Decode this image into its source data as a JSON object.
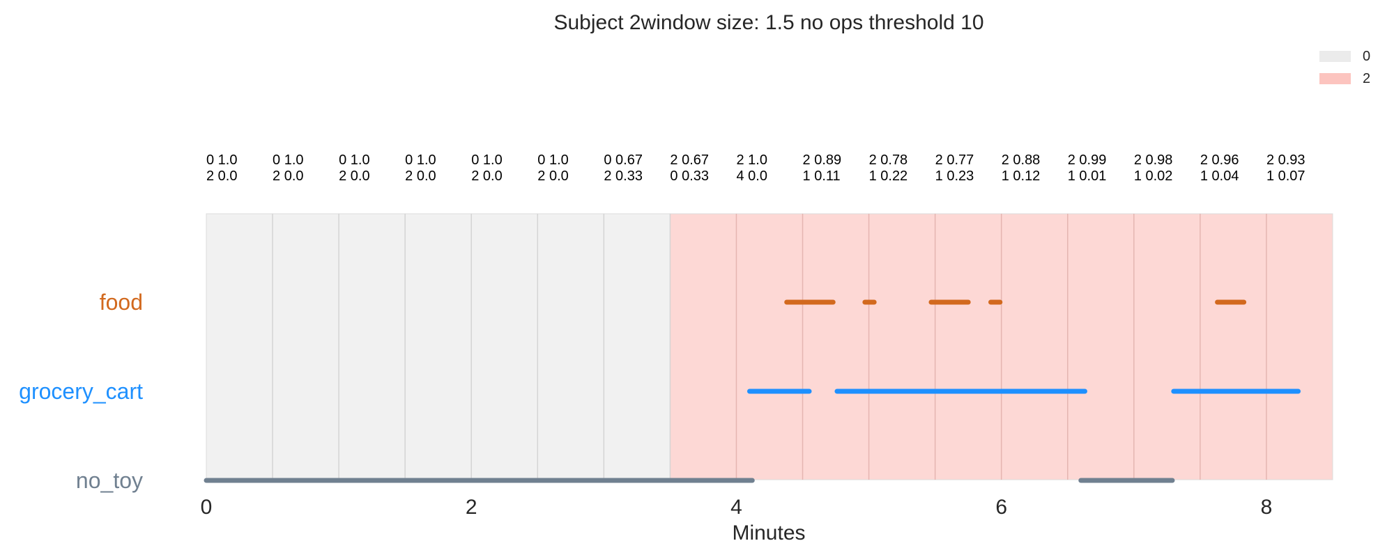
{
  "chart_data": {
    "type": "timeline",
    "title": "Subject 2window size: 1.5 no ops threshold 10",
    "xlabel": "Minutes",
    "xlim": [
      0,
      8.5
    ],
    "xticks": [
      0,
      2,
      4,
      6,
      8
    ],
    "grid": "vertical every 0.5",
    "legend": {
      "placement": "top-right",
      "entries": [
        {
          "label": "0",
          "color": "#ebebeb"
        },
        {
          "label": "2",
          "color": "#fcc4bf"
        }
      ]
    },
    "background_regions": [
      {
        "label": "0",
        "start": 0,
        "end": 3.5,
        "color": "#f1f1f1"
      },
      {
        "label": "2",
        "start": 3.5,
        "end": 8.5,
        "color": "#fdd8d5"
      }
    ],
    "window_annotations": [
      {
        "line1": "0 1.0",
        "line2": "2 0.0"
      },
      {
        "line1": "0 1.0",
        "line2": "2 0.0"
      },
      {
        "line1": "0 1.0",
        "line2": "2 0.0"
      },
      {
        "line1": "0 1.0",
        "line2": "2 0.0"
      },
      {
        "line1": "0 1.0",
        "line2": "2 0.0"
      },
      {
        "line1": "0 1.0",
        "line2": "2 0.0"
      },
      {
        "line1": "0 0.67",
        "line2": "2 0.33"
      },
      {
        "line1": "2 0.67",
        "line2": "0 0.33"
      },
      {
        "line1": "2 1.0",
        "line2": "4 0.0"
      },
      {
        "line1": "2 0.89",
        "line2": "1 0.11"
      },
      {
        "line1": "2 0.78",
        "line2": "1 0.22"
      },
      {
        "line1": "2 0.77",
        "line2": "1 0.23"
      },
      {
        "line1": "2 0.88",
        "line2": "1 0.12"
      },
      {
        "line1": "2 0.99",
        "line2": "1 0.01"
      },
      {
        "line1": "2 0.98",
        "line2": "1 0.02"
      },
      {
        "line1": "2 0.96",
        "line2": "1 0.04"
      },
      {
        "line1": "2 0.93",
        "line2": "1 0.07"
      }
    ],
    "series": [
      {
        "name": "food",
        "color": "#d2691e",
        "segments": [
          [
            4.38,
            4.73
          ],
          [
            4.97,
            5.04
          ],
          [
            5.47,
            5.75
          ],
          [
            5.92,
            5.99
          ],
          [
            7.63,
            7.83
          ]
        ]
      },
      {
        "name": "grocery_cart",
        "color": "#1e90ff",
        "segments": [
          [
            4.1,
            4.55
          ],
          [
            4.76,
            6.63
          ],
          [
            7.3,
            8.24
          ]
        ]
      },
      {
        "name": "no_toy",
        "color": "#708090",
        "segments": [
          [
            0.0,
            4.12
          ],
          [
            6.6,
            7.29
          ]
        ]
      }
    ]
  }
}
